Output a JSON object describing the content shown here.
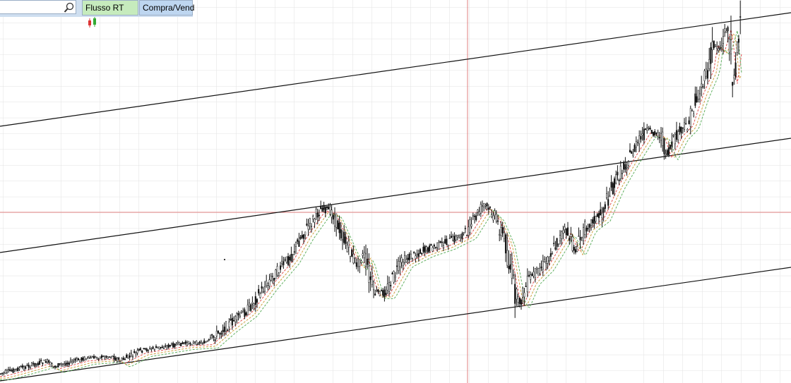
{
  "toolbar": {
    "buttons": [
      "Flusso RT",
      "Compra/Vend"
    ]
  }
}
